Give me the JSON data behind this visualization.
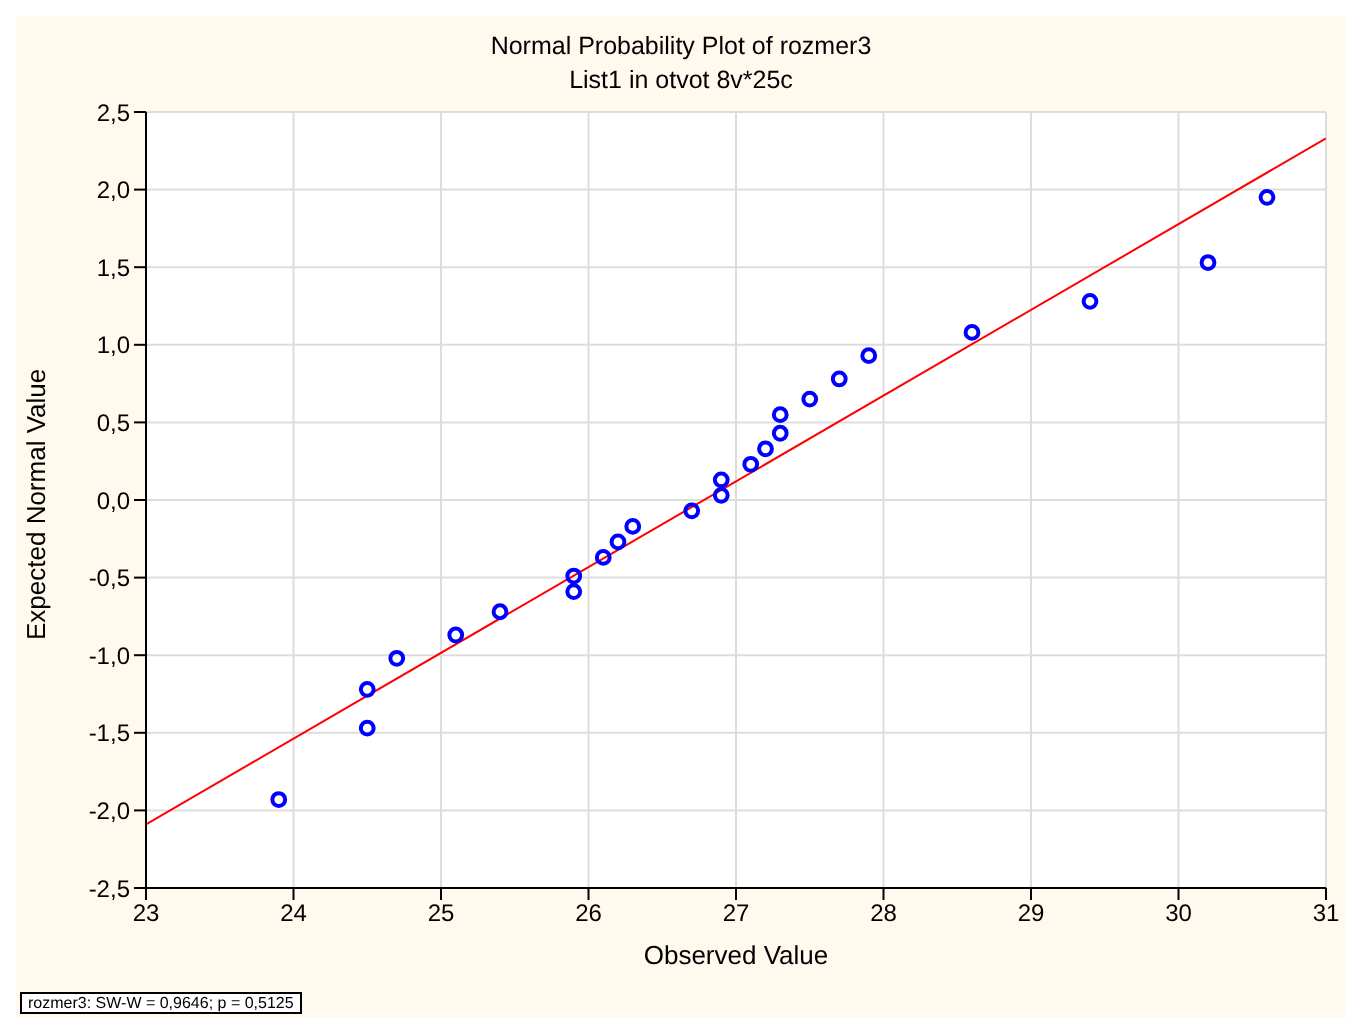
{
  "chart_data": {
    "type": "scatter",
    "title": "Normal Probability Plot of rozmer3",
    "subtitle": "List1 in otvot 8v*25c",
    "xlabel": "Observed Value",
    "ylabel": "Expected Normal Value",
    "annotations": [
      "rozmer3:  SW-W = 0,9646; p = 0,5125"
    ],
    "series": [
      {
        "marker": "circle",
        "color": "#0000ff",
        "x": [
          23.9,
          24.5,
          24.5,
          24.7,
          25.1,
          25.4,
          25.9,
          25.9,
          26.1,
          26.2,
          26.3,
          26.7,
          26.9,
          26.9,
          27.1,
          27.2,
          27.3,
          27.3,
          27.5,
          27.7,
          27.9,
          28.6,
          29.4,
          30.2,
          30.6
        ],
        "values": [
          -1.93,
          -1.47,
          -1.22,
          -1.02,
          -0.87,
          -0.72,
          -0.59,
          -0.49,
          -0.37,
          -0.27,
          -0.17,
          -0.07,
          0.03,
          0.13,
          0.23,
          0.33,
          0.43,
          0.55,
          0.65,
          0.78,
          0.93,
          1.08,
          1.28,
          1.53,
          1.95
        ]
      },
      {
        "type": "line",
        "color": "#ff0000",
        "x": [
          23,
          31
        ],
        "values": [
          -2.09,
          2.33
        ]
      }
    ],
    "xlim": [
      23,
      31
    ],
    "xticks": [
      23,
      24,
      25,
      26,
      27,
      28,
      29,
      30,
      31
    ],
    "ylim": [
      -2.5,
      2.5
    ],
    "yticks": [
      {
        "value": -2.5,
        "label": "-2,5"
      },
      {
        "value": -2,
        "label": "-2,0"
      },
      {
        "value": -1.5,
        "label": "-1,5"
      },
      {
        "value": -1,
        "label": "-1,0"
      },
      {
        "value": -0.5,
        "label": "-0,5"
      },
      {
        "value": 0,
        "label": "0,0"
      },
      {
        "value": 0.5,
        "label": "0,5"
      },
      {
        "value": 1,
        "label": "1,0"
      },
      {
        "value": 1.5,
        "label": "1,5"
      },
      {
        "value": 2,
        "label": "2,0"
      },
      {
        "value": 2.5,
        "label": "2,5"
      }
    ],
    "grid": true,
    "line_style": "solid",
    "legend": false
  }
}
